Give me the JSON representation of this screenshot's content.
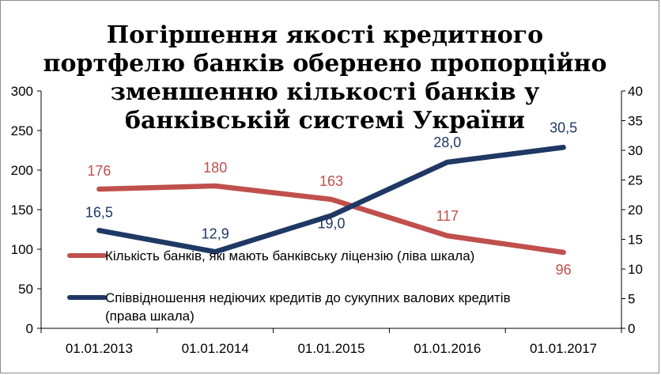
{
  "chart_data": {
    "type": "line",
    "title": "Погіршення якості кредитного портфелю банків обернено пропорційно зменшенню кількості банків у банківській системі України",
    "categories": [
      "01.01.2013",
      "01.01.2014",
      "01.01.2015",
      "01.01.2016",
      "01.01.2017"
    ],
    "left_axis": {
      "ylim": [
        0,
        300
      ],
      "ticks": [
        "0",
        "50",
        "100",
        "150",
        "200",
        "250",
        "300"
      ]
    },
    "right_axis": {
      "ylim": [
        0,
        40
      ],
      "ticks": [
        "0",
        "5",
        "10",
        "15",
        "20",
        "25",
        "30",
        "35",
        "40"
      ]
    },
    "series": [
      {
        "name": "Кількість банків, які мають банківську ліцензію (ліва шкала)",
        "axis": "left",
        "color": "#c0504d",
        "values": [
          176,
          180,
          163,
          117,
          96
        ],
        "labels": [
          "176",
          "180",
          "163",
          "117",
          "96"
        ]
      },
      {
        "name": "Співвідношення недіючих кредитів до сукупних валових кредитів (права шкала)",
        "axis": "right",
        "color": "#1f3864",
        "values": [
          16.5,
          12.9,
          19.0,
          28.0,
          30.5
        ],
        "labels": [
          "16,5",
          "12,9",
          "19,0",
          "28,0",
          "30,5"
        ]
      }
    ],
    "legend": {
      "line1": "Кількість банків, які мають банківську ліцензію (ліва шкала)",
      "line2a": "Співвідношення недіючих кредитів до сукупних валових кредитів",
      "line2b": "(права шкала)"
    }
  }
}
